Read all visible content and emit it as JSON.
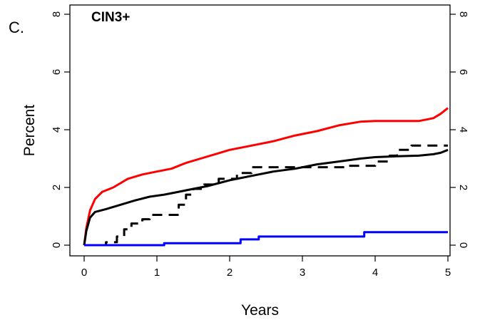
{
  "panel_label": "C.",
  "chart_data": {
    "type": "line",
    "title": "CIN3+",
    "xlabel": "Years",
    "ylabel": "Percent",
    "xlim": [
      0,
      5
    ],
    "ylim": [
      0,
      8
    ],
    "x_ticks": [
      "0",
      "1",
      "2",
      "3",
      "4",
      "5"
    ],
    "y_ticks": [
      "0",
      "2",
      "4",
      "6",
      "8"
    ],
    "y_ticks_right": [
      "0",
      "2",
      "4",
      "6",
      "8"
    ],
    "grid": false,
    "legend": "none",
    "series": [
      {
        "color": "#ff0000",
        "style": "solid",
        "step": false,
        "points": [
          [
            0,
            0
          ],
          [
            0.03,
            0.6
          ],
          [
            0.08,
            1.2
          ],
          [
            0.15,
            1.6
          ],
          [
            0.25,
            1.85
          ],
          [
            0.4,
            2.0
          ],
          [
            0.6,
            2.3
          ],
          [
            0.8,
            2.45
          ],
          [
            1.0,
            2.55
          ],
          [
            1.2,
            2.65
          ],
          [
            1.4,
            2.85
          ],
          [
            1.6,
            3.0
          ],
          [
            1.8,
            3.15
          ],
          [
            2.0,
            3.3
          ],
          [
            2.3,
            3.45
          ],
          [
            2.6,
            3.6
          ],
          [
            2.9,
            3.8
          ],
          [
            3.2,
            3.95
          ],
          [
            3.5,
            4.15
          ],
          [
            3.8,
            4.28
          ],
          [
            4.0,
            4.3
          ],
          [
            4.6,
            4.3
          ],
          [
            4.8,
            4.4
          ],
          [
            4.9,
            4.55
          ],
          [
            5.0,
            4.75
          ]
        ]
      },
      {
        "color": "#000000",
        "style": "solid",
        "step": false,
        "points": [
          [
            0,
            0
          ],
          [
            0.03,
            0.5
          ],
          [
            0.08,
            0.95
          ],
          [
            0.15,
            1.15
          ],
          [
            0.3,
            1.25
          ],
          [
            0.5,
            1.4
          ],
          [
            0.7,
            1.55
          ],
          [
            0.9,
            1.68
          ],
          [
            1.1,
            1.75
          ],
          [
            1.3,
            1.85
          ],
          [
            1.5,
            1.95
          ],
          [
            1.7,
            2.05
          ],
          [
            2.0,
            2.25
          ],
          [
            2.3,
            2.4
          ],
          [
            2.6,
            2.55
          ],
          [
            2.9,
            2.65
          ],
          [
            3.2,
            2.8
          ],
          [
            3.5,
            2.9
          ],
          [
            3.8,
            3.0
          ],
          [
            4.0,
            3.05
          ],
          [
            4.3,
            3.08
          ],
          [
            4.6,
            3.1
          ],
          [
            4.8,
            3.15
          ],
          [
            4.9,
            3.2
          ],
          [
            5.0,
            3.3
          ]
        ]
      },
      {
        "color": "#000000",
        "style": "dashed",
        "step": true,
        "points": [
          [
            0,
            0
          ],
          [
            0.3,
            0
          ],
          [
            0.3,
            0.1
          ],
          [
            0.45,
            0.1
          ],
          [
            0.45,
            0.3
          ],
          [
            0.55,
            0.3
          ],
          [
            0.55,
            0.55
          ],
          [
            0.65,
            0.55
          ],
          [
            0.65,
            0.75
          ],
          [
            0.8,
            0.75
          ],
          [
            0.8,
            0.9
          ],
          [
            0.9,
            0.9
          ],
          [
            0.9,
            1.05
          ],
          [
            1.3,
            1.05
          ],
          [
            1.3,
            1.4
          ],
          [
            1.4,
            1.4
          ],
          [
            1.4,
            1.75
          ],
          [
            1.5,
            1.75
          ],
          [
            1.5,
            1.95
          ],
          [
            1.65,
            1.95
          ],
          [
            1.65,
            2.1
          ],
          [
            1.85,
            2.1
          ],
          [
            1.85,
            2.3
          ],
          [
            2.1,
            2.3
          ],
          [
            2.1,
            2.5
          ],
          [
            2.3,
            2.5
          ],
          [
            2.3,
            2.7
          ],
          [
            3.6,
            2.7
          ],
          [
            3.6,
            2.75
          ],
          [
            4.0,
            2.75
          ],
          [
            4.0,
            2.9
          ],
          [
            4.2,
            2.9
          ],
          [
            4.2,
            3.1
          ],
          [
            4.3,
            3.1
          ],
          [
            4.3,
            3.3
          ],
          [
            4.5,
            3.3
          ],
          [
            4.5,
            3.45
          ],
          [
            5.0,
            3.45
          ]
        ]
      },
      {
        "color": "#0000ff",
        "style": "solid",
        "step": true,
        "points": [
          [
            0,
            0
          ],
          [
            1.1,
            0
          ],
          [
            1.1,
            0.07
          ],
          [
            2.15,
            0.07
          ],
          [
            2.15,
            0.2
          ],
          [
            2.4,
            0.2
          ],
          [
            2.4,
            0.3
          ],
          [
            3.85,
            0.3
          ],
          [
            3.85,
            0.45
          ],
          [
            5.0,
            0.45
          ]
        ]
      }
    ]
  }
}
